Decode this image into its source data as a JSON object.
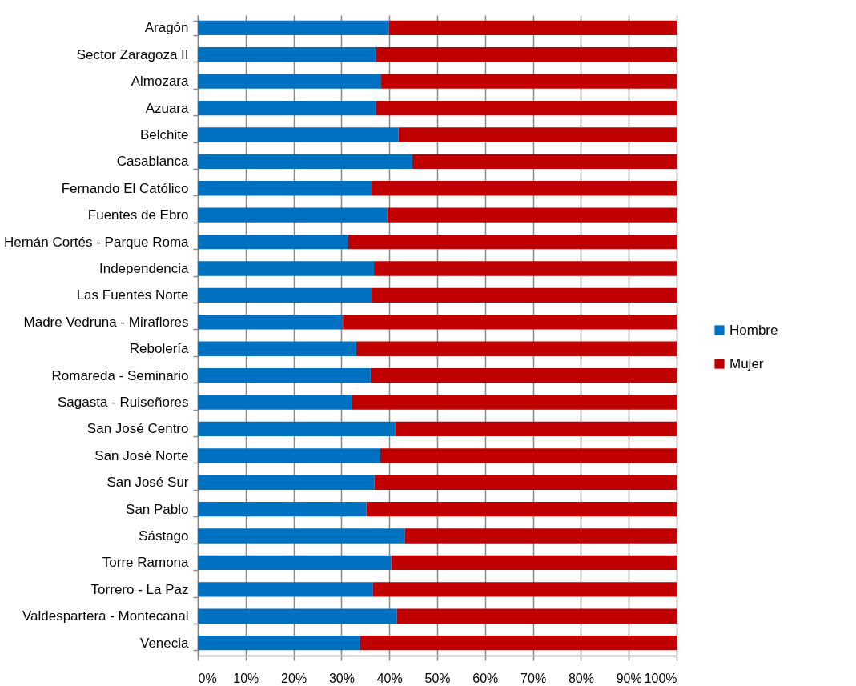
{
  "chart_data": {
    "type": "bar",
    "orientation": "horizontal",
    "stacked": true,
    "categories": [
      "Aragón",
      "Sector Zaragoza II",
      "Almozara",
      "Azuara",
      "Belchite",
      "Casablanca",
      "Fernando El Católico",
      "Fuentes de Ebro",
      "Hernán Cortés - Parque Roma",
      "Independencia",
      "Las Fuentes Norte",
      "Madre Vedruna - Miraflores",
      "Rebolería",
      "Romareda - Seminario",
      "Sagasta - Ruiseñores",
      "San José Centro",
      "San José Norte",
      "San José Sur",
      "San Pablo",
      "Sástago",
      "Torre Ramona",
      "Torrero - La Paz",
      "Valdespartera - Montecanal",
      "Venecia"
    ],
    "series": [
      {
        "name": "Hombre",
        "color": "#0070c0",
        "values": [
          39.9,
          37.2,
          38.3,
          37.2,
          41.9,
          44.8,
          36.3,
          39.6,
          31.4,
          36.8,
          36.3,
          30.3,
          33.1,
          36.1,
          32.2,
          41.2,
          38.1,
          36.9,
          35.2,
          43.2,
          40.4,
          36.6,
          41.6,
          33.9
        ]
      },
      {
        "name": "Mujer",
        "color": "#c00000",
        "values": [
          60.1,
          62.8,
          61.7,
          62.8,
          58.1,
          55.2,
          63.7,
          60.4,
          68.6,
          63.2,
          63.7,
          69.7,
          66.9,
          63.9,
          67.8,
          58.8,
          61.9,
          63.1,
          64.8,
          56.8,
          59.6,
          63.4,
          58.4,
          66.1
        ]
      }
    ],
    "xlim": [
      0,
      100
    ],
    "xticks": [
      {
        "value": 0,
        "label": "0%"
      },
      {
        "value": 10,
        "label": "10%"
      },
      {
        "value": 20,
        "label": "20%"
      },
      {
        "value": 30,
        "label": "30%"
      },
      {
        "value": 40,
        "label": "40%"
      },
      {
        "value": 50,
        "label": "50%"
      },
      {
        "value": 60,
        "label": "60%"
      },
      {
        "value": 70,
        "label": "70%"
      },
      {
        "value": 80,
        "label": "80%"
      },
      {
        "value": 90,
        "label": "90%"
      },
      {
        "value": 100,
        "label": "100%"
      }
    ],
    "grid": "x",
    "legend": "right"
  }
}
